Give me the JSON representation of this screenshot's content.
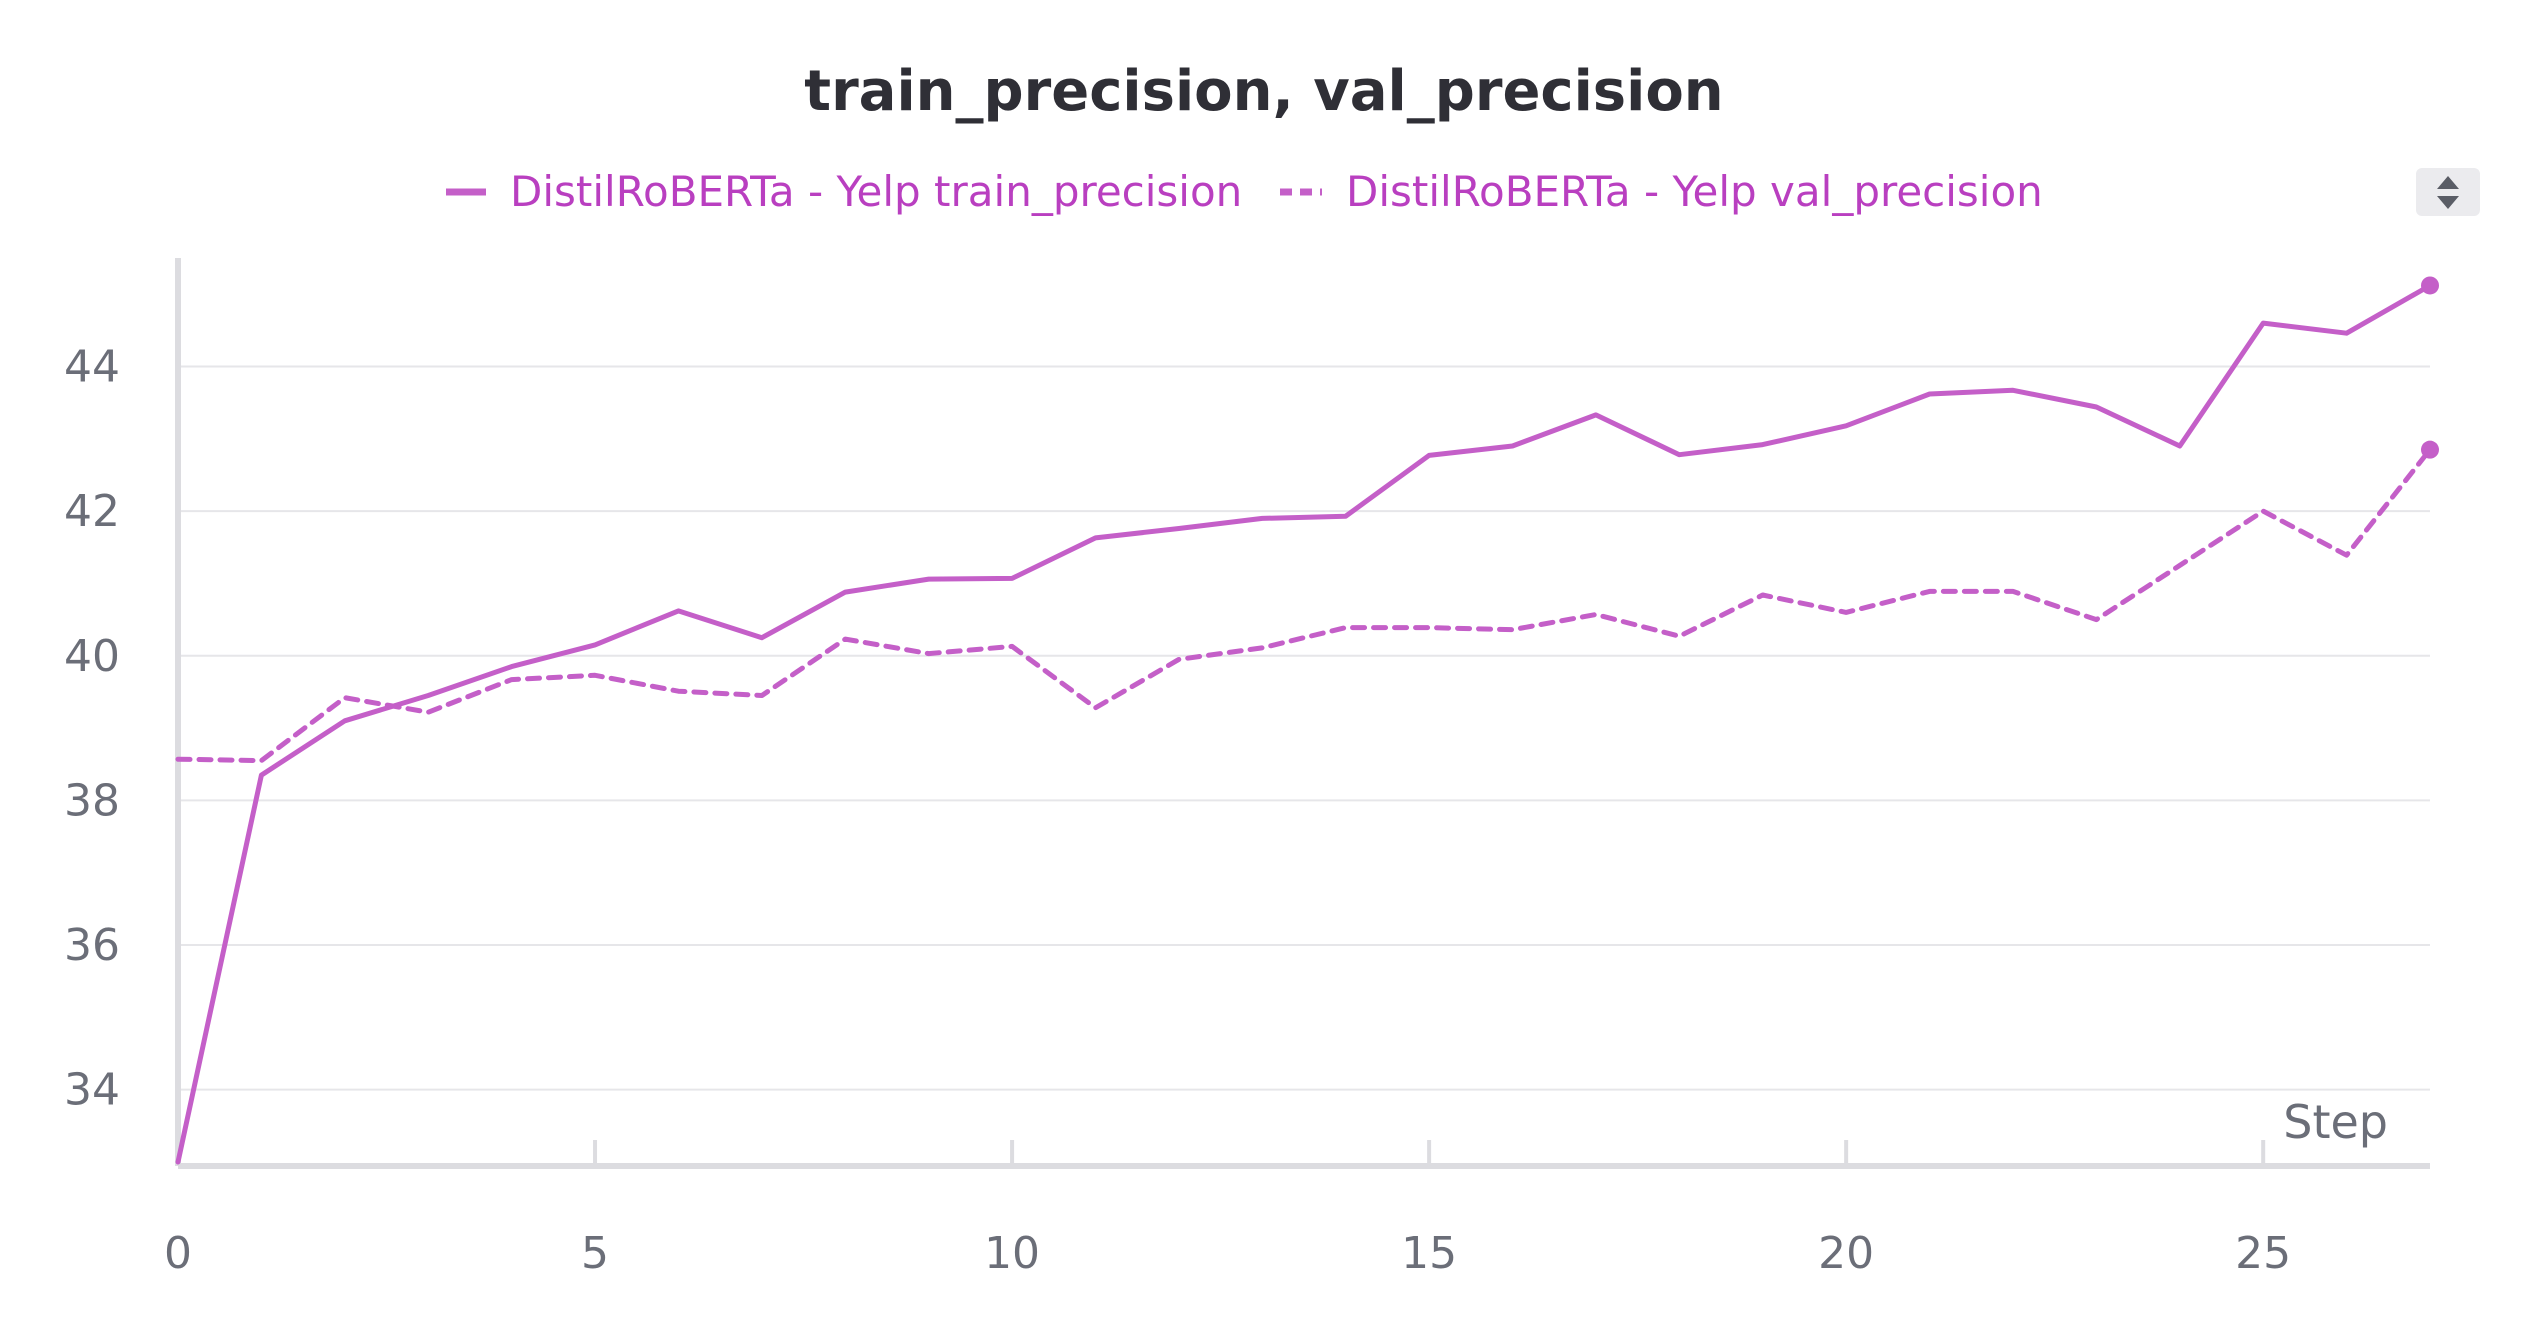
{
  "chart_data": {
    "type": "line",
    "title": "train_precision, val_precision",
    "xlabel": "Step",
    "ylabel": "",
    "xlim": [
      0,
      27
    ],
    "ylim": [
      33,
      45.5
    ],
    "xticks": [
      0,
      5,
      10,
      15,
      20,
      25
    ],
    "yticks": [
      34,
      36,
      38,
      40,
      42,
      44
    ],
    "grid": true,
    "legend_position": "top-center",
    "x": [
      0,
      1,
      2,
      3,
      4,
      5,
      6,
      7,
      8,
      9,
      10,
      11,
      12,
      13,
      14,
      15,
      16,
      17,
      18,
      19,
      20,
      21,
      22,
      23,
      24,
      25,
      26,
      27
    ],
    "series": [
      {
        "name": "DistilRoBERTa - Yelp train_precision",
        "style": "solid",
        "color": "#c45fc8",
        "values": [
          33.0,
          38.35,
          39.1,
          39.45,
          39.85,
          40.15,
          40.62,
          40.25,
          40.88,
          41.06,
          41.07,
          41.63,
          41.76,
          41.9,
          41.93,
          42.77,
          42.9,
          43.33,
          42.78,
          42.92,
          43.18,
          43.62,
          43.67,
          43.44,
          42.9,
          44.6,
          44.46,
          45.12
        ]
      },
      {
        "name": "DistilRoBERTa - Yelp val_precision",
        "style": "dashed",
        "color": "#c45fc8",
        "values": [
          38.57,
          38.55,
          39.42,
          39.22,
          39.67,
          39.73,
          39.51,
          39.45,
          40.23,
          40.03,
          40.13,
          39.28,
          39.95,
          40.11,
          40.39,
          40.39,
          40.36,
          40.57,
          40.27,
          40.84,
          40.6,
          40.89,
          40.89,
          40.5,
          41.25,
          42.0,
          41.39,
          42.85
        ]
      }
    ]
  },
  "colors": {
    "series": "#c45fc8",
    "legend_text": "#b93fc0",
    "grid": "#e6e6e9",
    "axis": "#dcdce0",
    "tick_text": "#6b6e78",
    "title": "#2f2f36"
  },
  "ui": {
    "scroll_icon": "sort-up-down-icon"
  }
}
